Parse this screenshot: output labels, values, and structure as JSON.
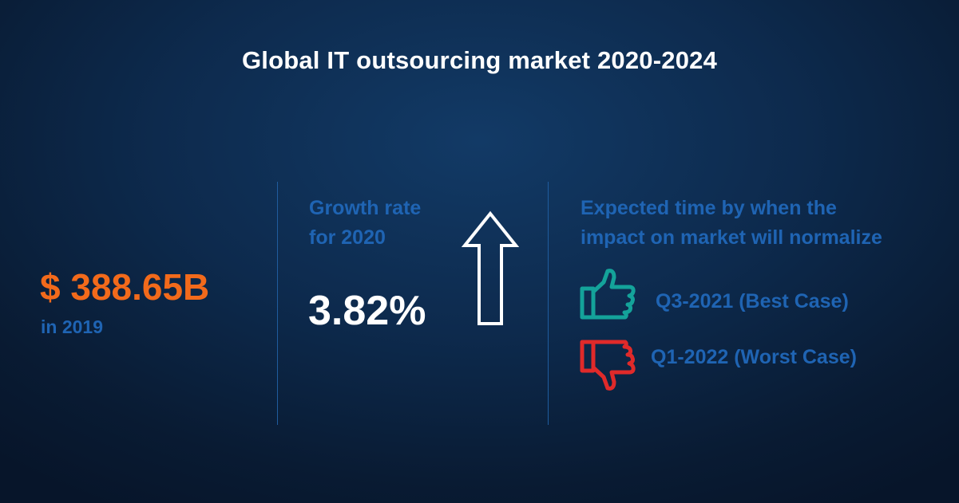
{
  "title": "Global IT outsourcing market 2020-2024",
  "market": {
    "value": "$ 388.65B",
    "year_label": "in 2019"
  },
  "growth": {
    "label_line1": "Growth rate",
    "label_line2": "for 2020",
    "value": "3.82%",
    "arrow_icon": "up-arrow-icon"
  },
  "normalization": {
    "label_line1": "Expected time by when the",
    "label_line2": "impact on market will normalize",
    "best_case": {
      "text": "Q3-2021 (Best Case)",
      "icon": "thumbs-up-icon",
      "color": "#14a39a"
    },
    "worst_case": {
      "text": "Q1-2022 (Worst Case)",
      "icon": "thumbs-down-icon",
      "color": "#e02a2a"
    }
  },
  "colors": {
    "background": "#0d2a4d",
    "accent_orange": "#f26a1b",
    "label_blue": "#1f64b3",
    "divider": "#1f5c9e"
  }
}
